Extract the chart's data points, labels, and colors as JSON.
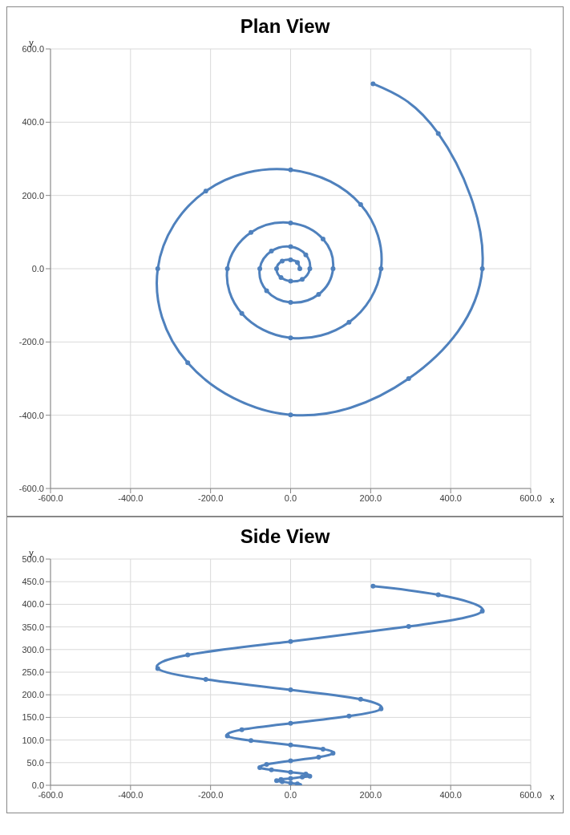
{
  "chart_data": [
    {
      "type": "line",
      "title": "Plan View",
      "xlabel": "x",
      "ylabel": "y",
      "marker": "circle",
      "line_style": "solid",
      "grid": true,
      "xlim": [
        -600,
        600
      ],
      "ylim": [
        -600,
        600
      ],
      "xticks": [
        {
          "value": -600,
          "label": "-600.0"
        },
        {
          "value": -400,
          "label": "-400.0"
        },
        {
          "value": -200,
          "label": "-200.0"
        },
        {
          "value": 0,
          "label": "0.0"
        },
        {
          "value": 200,
          "label": "200.0"
        },
        {
          "value": 400,
          "label": "400.0"
        },
        {
          "value": 600,
          "label": "600.0"
        }
      ],
      "yticks": [
        {
          "value": -600,
          "label": "-600.0"
        },
        {
          "value": -400,
          "label": "-400.0"
        },
        {
          "value": -200,
          "label": "-200.0"
        },
        {
          "value": 0,
          "label": "0.0"
        },
        {
          "value": 200,
          "label": "200.0"
        },
        {
          "value": 400,
          "label": "400.0"
        },
        {
          "value": 600,
          "label": "600.0"
        }
      ],
      "series": [
        {
          "color": "#4f81bd",
          "x": [
            23,
            17,
            0,
            -21,
            -35,
            -24,
            0,
            29,
            48,
            38,
            0,
            -48,
            -77,
            -60,
            0,
            70,
            106,
            81,
            0,
            -99,
            -158,
            -122,
            0,
            146,
            226,
            175,
            0,
            -212,
            -332,
            -257,
            0,
            295,
            479,
            369,
            206
          ],
          "values": [
            0,
            17,
            24,
            21,
            0,
            -24,
            -34,
            -29,
            0,
            38,
            60,
            48,
            0,
            -60,
            -92,
            -70,
            0,
            81,
            125,
            99,
            0,
            -122,
            -189,
            -146,
            0,
            175,
            270,
            212,
            0,
            -257,
            -399,
            -300,
            0,
            369,
            505
          ]
        }
      ]
    },
    {
      "type": "line",
      "title": "Side View",
      "xlabel": "x",
      "ylabel": "y",
      "marker": "circle",
      "line_style": "solid",
      "grid": true,
      "xlim": [
        -600,
        600
      ],
      "ylim": [
        0,
        500
      ],
      "xticks": [
        {
          "value": -600,
          "label": "-600.0"
        },
        {
          "value": -400,
          "label": "-400.0"
        },
        {
          "value": -200,
          "label": "-200.0"
        },
        {
          "value": 0,
          "label": "0.0"
        },
        {
          "value": 200,
          "label": "200.0"
        },
        {
          "value": 400,
          "label": "400.0"
        },
        {
          "value": 600,
          "label": "600.0"
        }
      ],
      "yticks": [
        {
          "value": 0,
          "label": "0.0"
        },
        {
          "value": 50,
          "label": "50.0"
        },
        {
          "value": 100,
          "label": "100.0"
        },
        {
          "value": 150,
          "label": "150.0"
        },
        {
          "value": 200,
          "label": "200.0"
        },
        {
          "value": 250,
          "label": "250.0"
        },
        {
          "value": 300,
          "label": "300.0"
        },
        {
          "value": 350,
          "label": "350.0"
        },
        {
          "value": 400,
          "label": "400.0"
        },
        {
          "value": 450,
          "label": "450.0"
        },
        {
          "value": 500,
          "label": "500.0"
        }
      ],
      "series": [
        {
          "color": "#4f81bd",
          "x": [
            23,
            17,
            0,
            -21,
            -35,
            -24,
            0,
            29,
            48,
            38,
            0,
            -48,
            -77,
            -60,
            0,
            70,
            106,
            81,
            0,
            -99,
            -158,
            -122,
            0,
            146,
            226,
            175,
            0,
            -212,
            -332,
            -257,
            0,
            295,
            479,
            369,
            206
          ],
          "values": [
            0,
            3,
            5,
            8,
            10,
            13,
            15,
            18,
            20,
            25,
            29,
            34,
            39,
            46,
            54,
            62,
            71,
            80,
            89,
            99,
            109,
            123,
            137,
            153,
            169,
            190,
            211,
            234,
            258,
            288,
            318,
            351,
            385,
            421,
            440
          ]
        }
      ]
    }
  ]
}
